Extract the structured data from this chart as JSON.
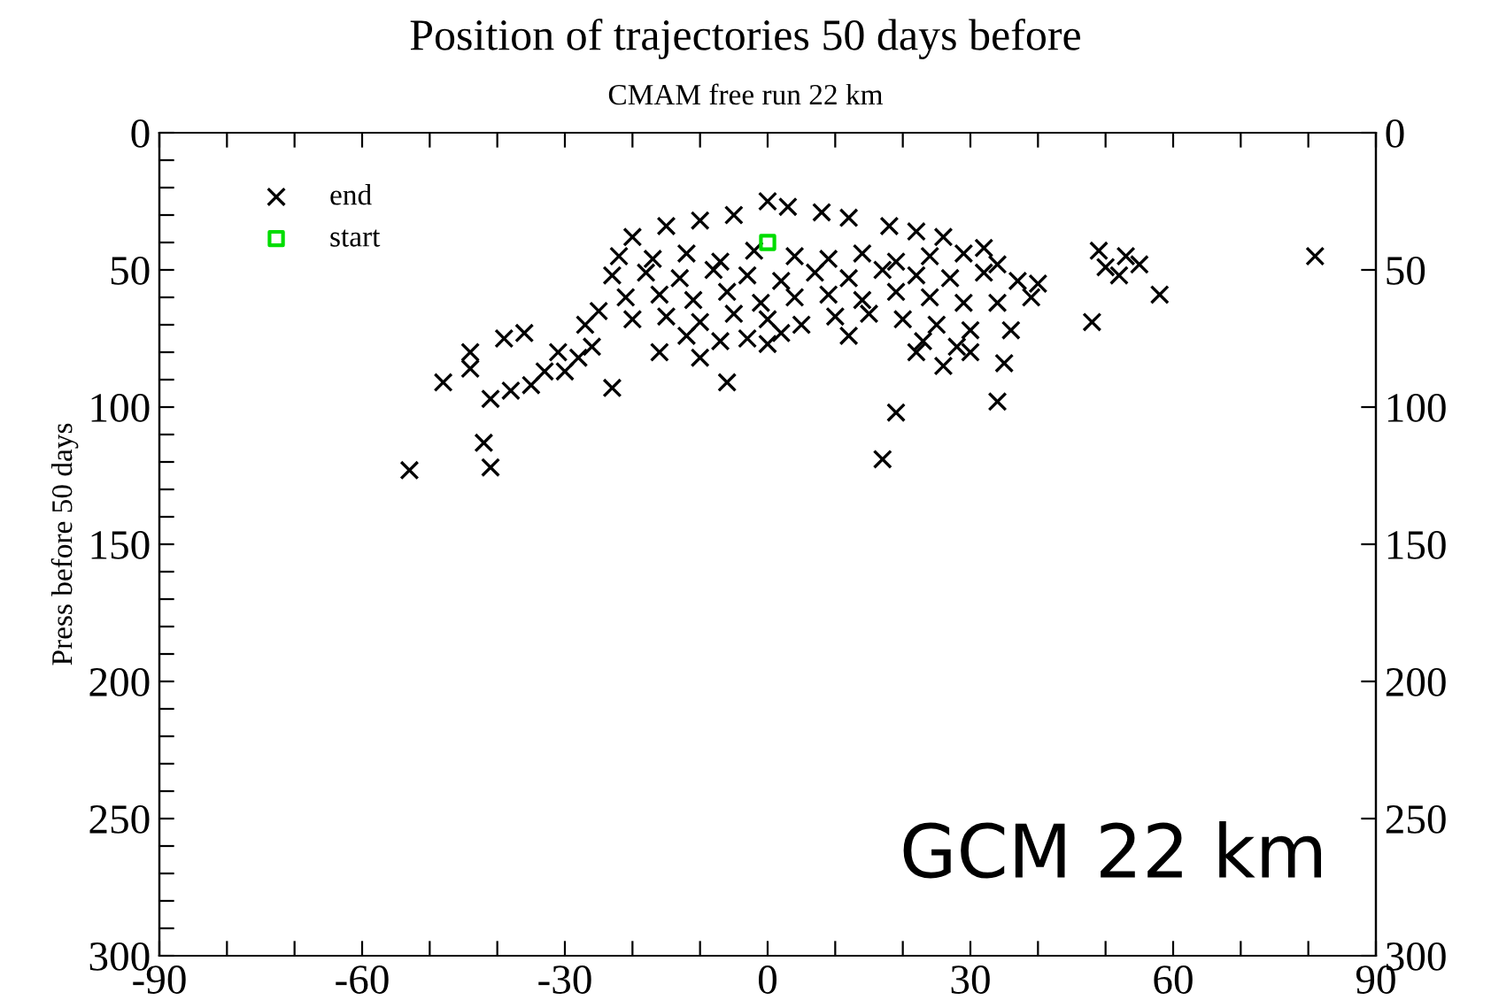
{
  "chart_data": {
    "type": "scatter",
    "title": "Position of trajectories 50 days before",
    "subtitle": "CMAM free run 22 km",
    "ylabel": "Press before 50 days",
    "annotations": [
      "GCM 22 km"
    ],
    "legend": "top left",
    "grid": false,
    "xlim": [
      -90,
      90
    ],
    "ylim": [
      300,
      0
    ],
    "y2lim": [
      300,
      0
    ],
    "xticks": [
      -90,
      {
        "value": -80,
        "label": null
      },
      {
        "value": -70,
        "label": null
      },
      -60,
      {
        "value": -50,
        "label": null
      },
      {
        "value": -40,
        "label": null
      },
      -30,
      {
        "value": -20,
        "label": null
      },
      {
        "value": -10,
        "label": null
      },
      0,
      {
        "value": 10,
        "label": null
      },
      {
        "value": 20,
        "label": null
      },
      30,
      {
        "value": 40,
        "label": null
      },
      {
        "value": 50,
        "label": null
      },
      60,
      {
        "value": 70,
        "label": null
      },
      {
        "value": 80,
        "label": null
      },
      90
    ],
    "yticks": [
      0,
      {
        "value": 10,
        "label": null
      },
      {
        "value": 20,
        "label": null
      },
      {
        "value": 30,
        "label": null
      },
      {
        "value": 40,
        "label": null
      },
      50,
      {
        "value": 60,
        "label": null
      },
      {
        "value": 70,
        "label": null
      },
      {
        "value": 80,
        "label": null
      },
      {
        "value": 90,
        "label": null
      },
      100,
      {
        "value": 110,
        "label": null
      },
      {
        "value": 120,
        "label": null
      },
      {
        "value": 130,
        "label": null
      },
      {
        "value": 140,
        "label": null
      },
      150,
      {
        "value": 160,
        "label": null
      },
      {
        "value": 170,
        "label": null
      },
      {
        "value": 180,
        "label": null
      },
      {
        "value": 190,
        "label": null
      },
      200,
      {
        "value": 210,
        "label": null
      },
      {
        "value": 220,
        "label": null
      },
      {
        "value": 230,
        "label": null
      },
      {
        "value": 240,
        "label": null
      },
      250,
      {
        "value": 260,
        "label": null
      },
      {
        "value": 270,
        "label": null
      },
      {
        "value": 280,
        "label": null
      },
      {
        "value": 290,
        "label": null
      },
      300
    ],
    "y2ticks": [
      0,
      50,
      100,
      150,
      200,
      250,
      300
    ],
    "series": [
      {
        "name": "end",
        "color": "#000000",
        "marker": "cross",
        "x": [
          -53,
          -41,
          -42,
          -48,
          -44,
          -44,
          -41,
          -38,
          -39,
          -36,
          -35,
          -33,
          -31,
          -30,
          -28,
          -26,
          -27,
          -23,
          -25,
          -6,
          -3,
          0,
          17,
          19,
          22,
          26,
          30,
          34,
          35,
          36,
          39,
          40,
          49,
          48,
          50,
          52,
          53,
          55,
          58,
          81,
          -20,
          -15,
          -10,
          -5,
          0,
          3,
          8,
          12,
          18,
          22,
          26,
          32,
          -22,
          -17,
          -12,
          -7,
          -2,
          4,
          9,
          14,
          19,
          24,
          29,
          34,
          -23,
          -18,
          -13,
          -8,
          -3,
          2,
          7,
          12,
          17,
          22,
          27,
          32,
          37,
          -21,
          -16,
          -11,
          -6,
          -1,
          4,
          9,
          14,
          19,
          24,
          29,
          34,
          -20,
          -15,
          -10,
          -5,
          0,
          5,
          10,
          15,
          20,
          25,
          30,
          -12,
          -7,
          2,
          12,
          23,
          28,
          -16,
          -10
        ],
        "values": [
          123,
          122,
          113,
          91,
          86,
          80,
          97,
          94,
          75,
          73,
          92,
          87,
          80,
          87,
          82,
          78,
          70,
          93,
          65,
          91,
          75,
          77,
          119,
          102,
          80,
          85,
          80,
          98,
          84,
          72,
          60,
          55,
          43,
          69,
          49,
          52,
          45,
          48,
          59,
          45,
          38,
          34,
          32,
          30,
          25,
          27,
          29,
          31,
          34,
          36,
          38,
          42,
          45,
          46,
          44,
          47,
          43,
          45,
          46,
          44,
          47,
          45,
          44,
          48,
          52,
          51,
          53,
          50,
          52,
          54,
          51,
          53,
          50,
          52,
          53,
          51,
          54,
          60,
          59,
          61,
          58,
          62,
          60,
          59,
          61,
          58,
          60,
          62,
          62,
          68,
          67,
          69,
          66,
          68,
          70,
          67,
          66,
          68,
          70,
          72,
          74,
          76,
          73,
          74,
          76,
          78,
          80,
          82
        ]
      },
      {
        "name": "start",
        "color": "#00dd00",
        "marker": "square",
        "x": [
          0
        ],
        "values": [
          40
        ]
      }
    ]
  }
}
